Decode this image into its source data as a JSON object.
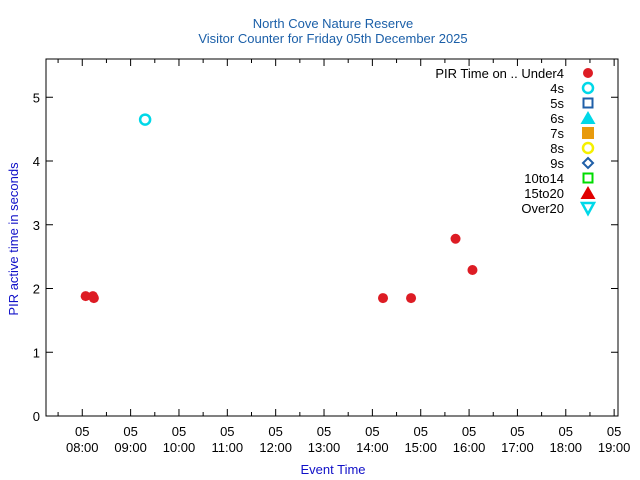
{
  "chart_data": {
    "type": "scatter",
    "title": "North Cove Nature Reserve",
    "subtitle": "Visitor Counter for Friday 05th December 2025",
    "xlabel": "Event Time",
    "ylabel": "PIR active time in seconds",
    "xlim_hours": [
      7.25,
      19.08
    ],
    "ylim": [
      0,
      5.6
    ],
    "y_ticks": [
      0,
      1,
      2,
      3,
      4,
      5
    ],
    "x_ticks": [
      {
        "hour": 8,
        "day": "05",
        "time": "08:00"
      },
      {
        "hour": 9,
        "day": "05",
        "time": "09:00"
      },
      {
        "hour": 10,
        "day": "05",
        "time": "10:00"
      },
      {
        "hour": 11,
        "day": "05",
        "time": "11:00"
      },
      {
        "hour": 12,
        "day": "05",
        "time": "12:00"
      },
      {
        "hour": 13,
        "day": "05",
        "time": "13:00"
      },
      {
        "hour": 14,
        "day": "05",
        "time": "14:00"
      },
      {
        "hour": 15,
        "day": "05",
        "time": "15:00"
      },
      {
        "hour": 16,
        "day": "05",
        "time": "16:00"
      },
      {
        "hour": 17,
        "day": "05",
        "time": "17:00"
      },
      {
        "hour": 18,
        "day": "05",
        "time": "18:00"
      },
      {
        "hour": 19,
        "day": "05",
        "time": "19:00"
      }
    ],
    "legend_title": "PIR Time on ..",
    "legend_position": "top-right",
    "series": [
      {
        "name": "Under4",
        "marker": "filled-circle",
        "color": "#dd1c24",
        "points": [
          {
            "x": 8.07,
            "y": 1.88
          },
          {
            "x": 8.22,
            "y": 1.88
          },
          {
            "x": 8.24,
            "y": 1.85
          },
          {
            "x": 14.22,
            "y": 1.85
          },
          {
            "x": 14.8,
            "y": 1.85
          },
          {
            "x": 15.72,
            "y": 2.78
          },
          {
            "x": 16.07,
            "y": 2.29
          }
        ]
      },
      {
        "name": "4s",
        "marker": "open-circle",
        "color": "#00d8e8",
        "points": [
          {
            "x": 9.3,
            "y": 4.65
          }
        ]
      },
      {
        "name": "5s",
        "marker": "open-square",
        "color": "#1f5fa8",
        "points": []
      },
      {
        "name": "6s",
        "marker": "filled-triangle",
        "color": "#00d8e8",
        "points": []
      },
      {
        "name": "7s",
        "marker": "filled-square",
        "color": "#e89a0c",
        "points": []
      },
      {
        "name": "8s",
        "marker": "open-circle",
        "color": "#f5f000",
        "points": []
      },
      {
        "name": "9s",
        "marker": "open-diamond",
        "color": "#1f5fa8",
        "points": []
      },
      {
        "name": "10to14",
        "marker": "open-square",
        "color": "#00dc00",
        "points": []
      },
      {
        "name": "15to20",
        "marker": "filled-triangle",
        "color": "#e10000",
        "points": []
      },
      {
        "name": "Over20",
        "marker": "open-triangle-down",
        "color": "#00d8e8",
        "points": []
      }
    ]
  },
  "colors": {
    "title": "#1b5fa8",
    "axis_label": "#1010c8",
    "text": "#000000"
  }
}
